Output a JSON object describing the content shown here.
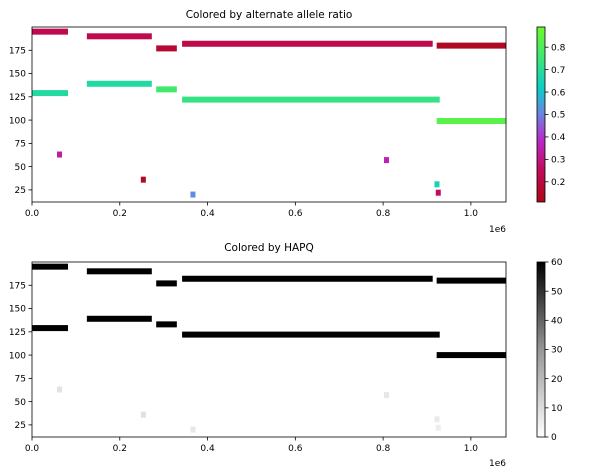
{
  "chart_data": [
    {
      "type": "scatter",
      "title": "Colored by alternate allele ratio",
      "x_offset_label": "1e6",
      "xlim": [
        0,
        1080000
      ],
      "ylim": [
        12,
        200
      ],
      "x_ticks": [
        0,
        200000,
        400000,
        600000,
        800000,
        1000000
      ],
      "x_tick_labels": [
        "0.0",
        "0.2",
        "0.4",
        "0.6",
        "0.8",
        "1.0"
      ],
      "y_ticks": [
        25,
        50,
        75,
        100,
        125,
        150,
        175
      ],
      "y_tick_labels": [
        "25",
        "50",
        "75",
        "100",
        "125",
        "150",
        "175"
      ],
      "colorbar": {
        "colormap": "brg",
        "range": [
          0.11,
          0.89
        ],
        "ticks": [
          0.2,
          0.3,
          0.4,
          0.5,
          0.6,
          0.7,
          0.8
        ],
        "tick_labels": [
          "0.2",
          "0.3",
          "0.4",
          "0.5",
          "0.6",
          "0.7",
          "0.8"
        ]
      },
      "segments": [
        {
          "x0": 0,
          "x1": 82000,
          "y": 195,
          "value": 0.23
        },
        {
          "x0": 125000,
          "x1": 273000,
          "y": 190,
          "value": 0.23
        },
        {
          "x0": 283000,
          "x1": 330000,
          "y": 177,
          "value": 0.17
        },
        {
          "x0": 342000,
          "x1": 913000,
          "y": 182,
          "value": 0.22
        },
        {
          "x0": 922000,
          "x1": 1080000,
          "y": 180,
          "value": 0.14
        },
        {
          "x0": 0,
          "x1": 82000,
          "y": 129,
          "value": 0.68
        },
        {
          "x0": 125000,
          "x1": 273000,
          "y": 139,
          "value": 0.68
        },
        {
          "x0": 283000,
          "x1": 330000,
          "y": 133,
          "value": 0.77
        },
        {
          "x0": 342000,
          "x1": 929000,
          "y": 122,
          "value": 0.73
        },
        {
          "x0": 922000,
          "x1": 1080000,
          "y": 99,
          "value": 0.83
        },
        {
          "x0": 57000,
          "x1": 68000,
          "y": 63,
          "value": 0.34
        },
        {
          "x0": 248000,
          "x1": 258000,
          "y": 36,
          "value": 0.15
        },
        {
          "x0": 361000,
          "x1": 371000,
          "y": 20,
          "value": 0.52
        },
        {
          "x0": 802000,
          "x1": 812000,
          "y": 57,
          "value": 0.36
        },
        {
          "x0": 917000,
          "x1": 927000,
          "y": 31,
          "value": 0.65
        },
        {
          "x0": 920000,
          "x1": 930000,
          "y": 22,
          "value": 0.26
        }
      ]
    },
    {
      "type": "scatter",
      "title": "Colored by HAPQ",
      "x_offset_label": "1e6",
      "xlim": [
        0,
        1080000
      ],
      "ylim": [
        12,
        200
      ],
      "x_ticks": [
        0,
        200000,
        400000,
        600000,
        800000,
        1000000
      ],
      "x_tick_labels": [
        "0.0",
        "0.2",
        "0.4",
        "0.6",
        "0.8",
        "1.0"
      ],
      "y_ticks": [
        25,
        50,
        75,
        100,
        125,
        150,
        175
      ],
      "y_tick_labels": [
        "25",
        "50",
        "75",
        "100",
        "125",
        "150",
        "175"
      ],
      "colorbar": {
        "colormap": "Greys",
        "range": [
          0,
          60
        ],
        "ticks": [
          0,
          10,
          20,
          30,
          40,
          50,
          60
        ],
        "tick_labels": [
          "0",
          "10",
          "20",
          "30",
          "40",
          "50",
          "60"
        ]
      },
      "segments": [
        {
          "x0": 0,
          "x1": 82000,
          "y": 195,
          "value": 60
        },
        {
          "x0": 125000,
          "x1": 273000,
          "y": 190,
          "value": 60
        },
        {
          "x0": 283000,
          "x1": 330000,
          "y": 177,
          "value": 60
        },
        {
          "x0": 342000,
          "x1": 913000,
          "y": 182,
          "value": 60
        },
        {
          "x0": 922000,
          "x1": 1080000,
          "y": 180,
          "value": 60
        },
        {
          "x0": 0,
          "x1": 82000,
          "y": 129,
          "value": 60
        },
        {
          "x0": 125000,
          "x1": 273000,
          "y": 139,
          "value": 60
        },
        {
          "x0": 283000,
          "x1": 330000,
          "y": 133,
          "value": 60
        },
        {
          "x0": 342000,
          "x1": 929000,
          "y": 122,
          "value": 60
        },
        {
          "x0": 922000,
          "x1": 1080000,
          "y": 100,
          "value": 60
        },
        {
          "x0": 57000,
          "x1": 68000,
          "y": 63,
          "value": 8
        },
        {
          "x0": 248000,
          "x1": 258000,
          "y": 36,
          "value": 9
        },
        {
          "x0": 361000,
          "x1": 371000,
          "y": 20,
          "value": 7
        },
        {
          "x0": 802000,
          "x1": 812000,
          "y": 57,
          "value": 7
        },
        {
          "x0": 917000,
          "x1": 927000,
          "y": 31,
          "value": 6
        },
        {
          "x0": 920000,
          "x1": 930000,
          "y": 22,
          "value": 5
        }
      ]
    }
  ]
}
